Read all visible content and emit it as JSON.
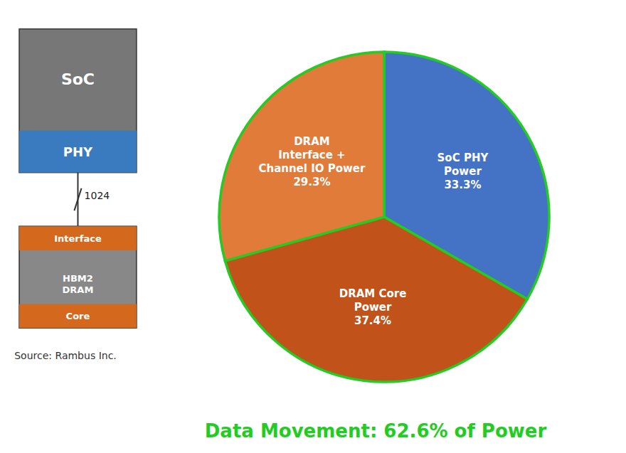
{
  "chart_data": {
    "type": "pie",
    "title": "Data Movement: 62.6% of Power",
    "categories": [
      "SoC PHY\nPower",
      "DRAM Core\nPower",
      "DRAM\nInterface +\nChannel IO Power"
    ],
    "values": [
      33.3,
      37.4,
      29.3
    ],
    "value_labels": [
      "33.3%",
      "37.4%",
      "29.3%"
    ],
    "data_labels": true,
    "colors": [
      "#4472c4",
      "#c0521a",
      "#e07b39"
    ],
    "annotations": [
      "SoC",
      "PHY",
      "1024",
      "Interface",
      "HBM2\nDRAM",
      "Core",
      "Source: Rambus Inc."
    ]
  }
}
